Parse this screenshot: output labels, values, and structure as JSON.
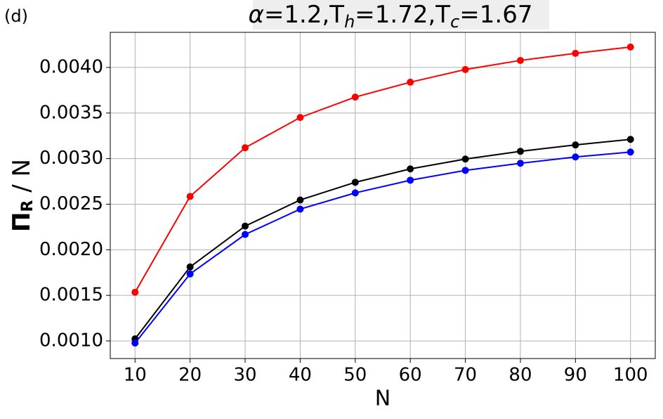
{
  "panel_label": "(d)",
  "chart_data": {
    "type": "line",
    "title": [
      "α",
      "=1.2,T",
      "h",
      "=1.72,T",
      "c",
      "=1.67"
    ],
    "y_label": [
      "Π",
      "R",
      " / N"
    ],
    "x_label": "N",
    "x": [
      10,
      20,
      30,
      40,
      50,
      60,
      70,
      80,
      90,
      100
    ],
    "xlim": [
      5.5,
      104.5
    ],
    "xticks": [
      10,
      20,
      30,
      40,
      50,
      60,
      70,
      80,
      90,
      100
    ],
    "ylim": [
      0.000807,
      0.004385
    ],
    "yticks": [
      {
        "value": 0.001,
        "label": "0.0010"
      },
      {
        "value": 0.0015,
        "label": "0.0015"
      },
      {
        "value": 0.002,
        "label": "0.0020"
      },
      {
        "value": 0.0025,
        "label": "0.0025"
      },
      {
        "value": 0.003,
        "label": "0.0030"
      },
      {
        "value": 0.0035,
        "label": "0.0035"
      },
      {
        "value": 0.004,
        "label": "0.0040"
      }
    ],
    "grid": true,
    "series": [
      {
        "color": "#ff0000",
        "values": [
          0.001534,
          0.002585,
          0.003119,
          0.003451,
          0.003675,
          0.003838,
          0.003977,
          0.004077,
          0.004155,
          0.004224
        ]
      },
      {
        "color": "#000000",
        "values": [
          0.001023,
          0.001812,
          0.00226,
          0.002546,
          0.00274,
          0.002887,
          0.002995,
          0.00308,
          0.00315,
          0.003211
        ]
      },
      {
        "color": "#0000ff",
        "values": [
          0.000977,
          0.001735,
          0.002168,
          0.002446,
          0.002624,
          0.002763,
          0.002871,
          0.002949,
          0.003018,
          0.003072
        ]
      }
    ]
  }
}
